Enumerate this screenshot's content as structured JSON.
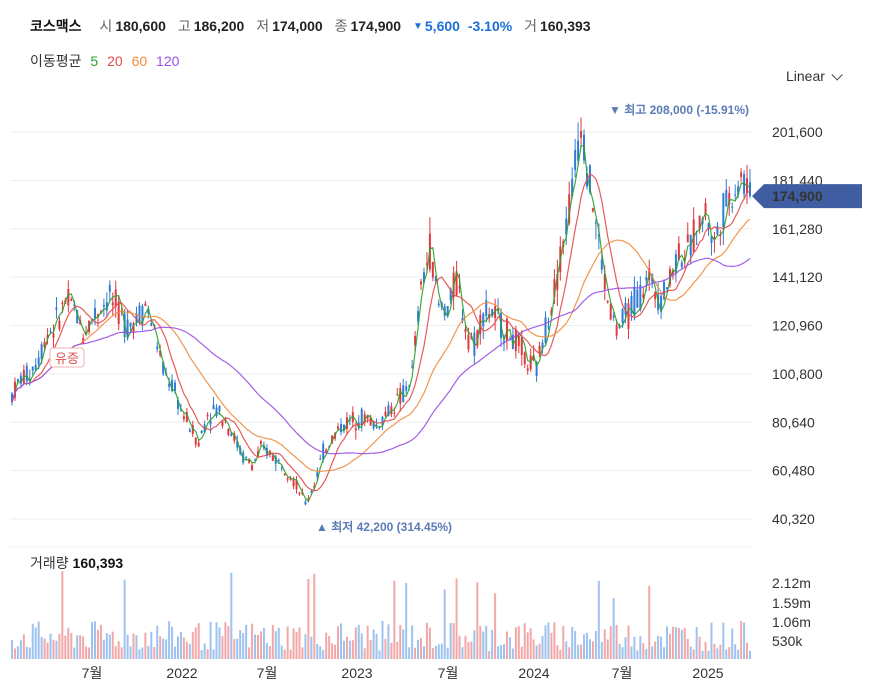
{
  "header": {
    "name": "코스맥스",
    "open_label": "시",
    "open": "180,600",
    "high_label": "고",
    "high": "186,200",
    "low_label": "저",
    "low": "174,000",
    "close_label": "종",
    "close": "174,900",
    "change": "5,600",
    "change_pct": "-3.10%",
    "volume_label": "거",
    "volume": "160,393"
  },
  "ma_legend": {
    "title": "이동평균",
    "items": [
      {
        "label": "5",
        "color": "#2ca02c"
      },
      {
        "label": "20",
        "color": "#e34a4a"
      },
      {
        "label": "60",
        "color": "#f08c3c"
      },
      {
        "label": "120",
        "color": "#9a4fe3"
      }
    ]
  },
  "scale_selector": "Linear",
  "volume_panel": {
    "label": "거래량",
    "value": "160,393"
  },
  "chart_data": {
    "type": "candlestick",
    "price_axis": {
      "ticks": [
        "201,600",
        "181,440",
        "161,280",
        "141,120",
        "120,960",
        "100,800",
        "80,640",
        "60,480",
        "40,320"
      ],
      "range": [
        40320,
        201600
      ]
    },
    "volume_axis": {
      "ticks": [
        "2.12m",
        "1.59m",
        "1.06m",
        "530k"
      ]
    },
    "x_axis": {
      "ticks": [
        "7월",
        "2022",
        "7월",
        "2023",
        "7월",
        "2024",
        "7월",
        "2025"
      ]
    },
    "last_price_tag": "174,900",
    "annotations": {
      "high": "최고 208,000 (-15.91%)",
      "low": "최저 42,200 (314.45%)",
      "event": "유증"
    },
    "close_path": [
      92000,
      99000,
      101000,
      108000,
      118000,
      122000,
      131000,
      128000,
      118000,
      124000,
      129000,
      133000,
      126000,
      121000,
      124000,
      130000,
      119000,
      102000,
      96000,
      86000,
      79000,
      72000,
      84000,
      86000,
      82000,
      74000,
      66000,
      63000,
      69000,
      68000,
      64000,
      61000,
      54000,
      47000,
      55000,
      68000,
      74000,
      79000,
      81000,
      83000,
      82000,
      79000,
      84000,
      88000,
      92000,
      101000,
      136000,
      153000,
      129000,
      128000,
      140000,
      121000,
      113000,
      127000,
      126000,
      121000,
      117000,
      112000,
      105000,
      103000,
      120000,
      136000,
      156000,
      178000,
      208000,
      180000,
      155000,
      131000,
      119000,
      124000,
      131000,
      136000,
      141000,
      132000,
      141000,
      152000,
      151000,
      161000,
      168000,
      155000,
      170000,
      176000,
      183000,
      174900
    ]
  }
}
